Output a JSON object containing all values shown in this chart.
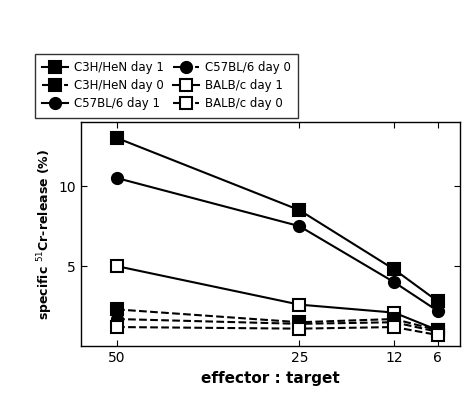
{
  "x": [
    50,
    25,
    12,
    6
  ],
  "series": [
    {
      "name": "C3H/HeN day 1",
      "y": [
        13.0,
        8.5,
        4.8,
        2.8
      ],
      "marker": "s",
      "linestyle": "-",
      "fillstyle": "full"
    },
    {
      "name": "C57BL/6 day 1",
      "y": [
        10.5,
        7.5,
        4.0,
        2.2
      ],
      "marker": "o",
      "linestyle": "-",
      "fillstyle": "full"
    },
    {
      "name": "BALB/c day 1",
      "y": [
        5.0,
        2.6,
        2.1,
        1.0
      ],
      "marker": "s",
      "linestyle": "-",
      "fillstyle": "none"
    },
    {
      "name": "C3H/HeN day 0",
      "y": [
        2.3,
        1.5,
        1.7,
        1.0
      ],
      "marker": "s",
      "linestyle": "--",
      "fillstyle": "full"
    },
    {
      "name": "C57BL/6 day 0",
      "y": [
        1.7,
        1.4,
        1.5,
        0.9
      ],
      "marker": "o",
      "linestyle": "--",
      "fillstyle": "full"
    },
    {
      "name": "BALB/c day 0",
      "y": [
        1.2,
        1.1,
        1.2,
        0.7
      ],
      "marker": "s",
      "linestyle": "--",
      "fillstyle": "none"
    }
  ],
  "xlabel": "effector : target",
  "ylabel": "specific $^{51}$Cr-release (%)",
  "xlim": [
    55,
    3
  ],
  "ylim": [
    0,
    14
  ],
  "yticks": [
    5,
    10
  ],
  "xticks": [
    50,
    25,
    12,
    6
  ],
  "legend_col1": [
    "C3H/HeN day 1",
    "C57BL/6 day 1",
    "BALB/c day 1"
  ],
  "legend_col2": [
    "C3H/HeN day 0",
    "C57BL/6 day 0",
    "BALB/c day 0"
  ],
  "markersize": 8,
  "linewidth": 1.5,
  "markeredgewidth": 1.5,
  "legend_fontsize": 8.5,
  "tick_fontsize": 10,
  "xlabel_fontsize": 11,
  "ylabel_fontsize": 9
}
